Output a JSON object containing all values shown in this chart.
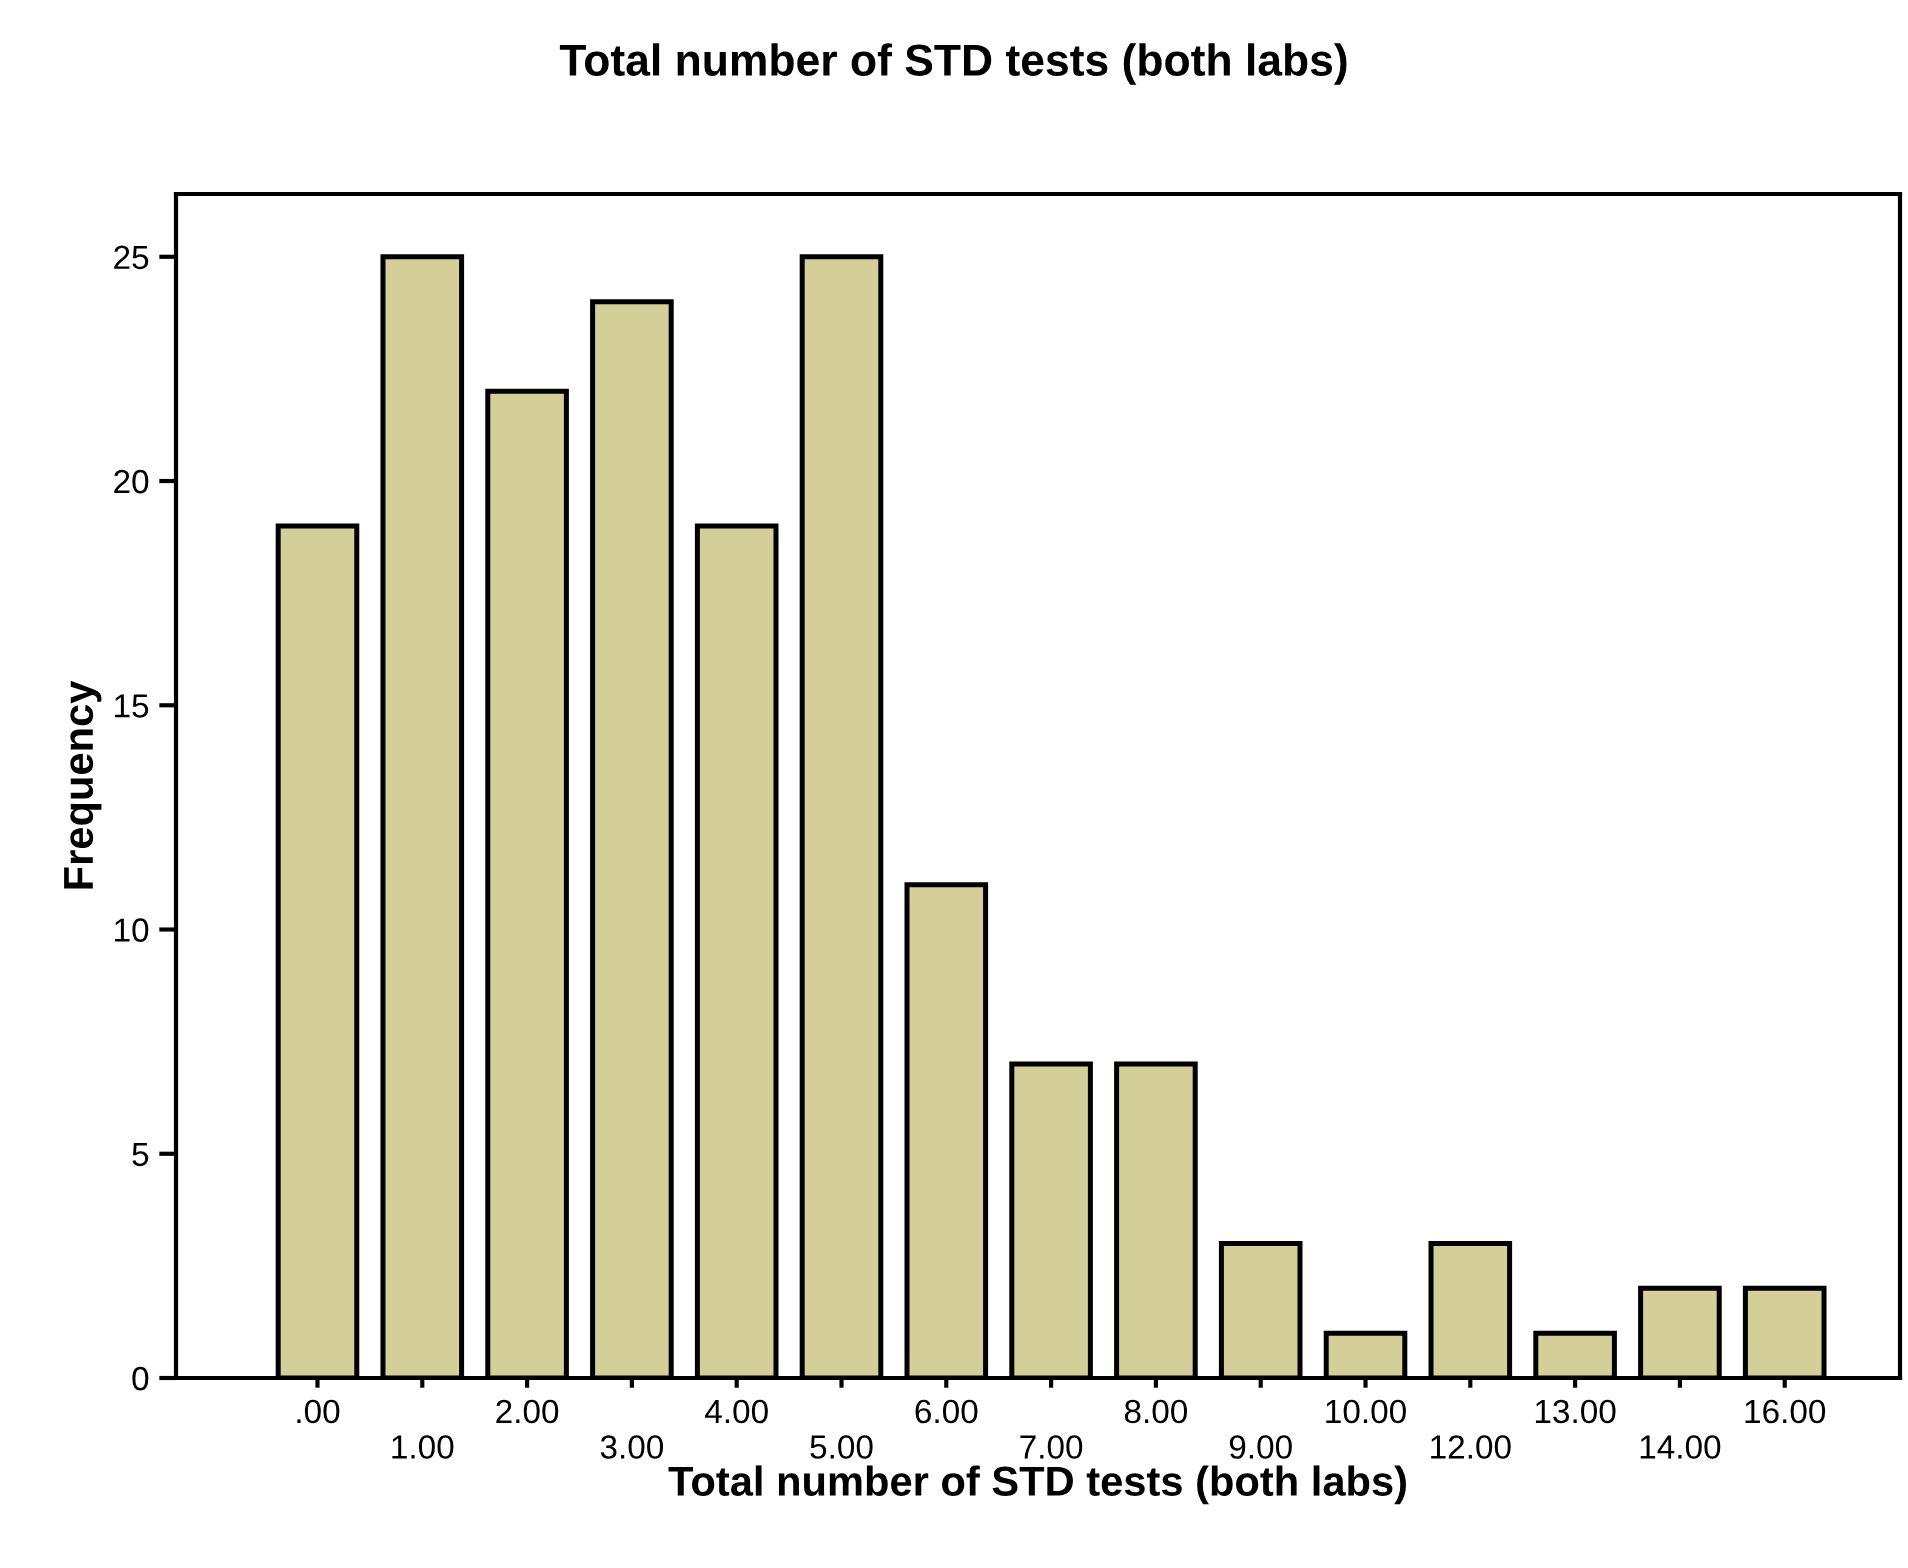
{
  "chart_data": {
    "type": "bar",
    "title": "Total number of STD tests (both labs)",
    "xlabel": "Total number of STD tests (both labs)",
    "ylabel": "Frequency",
    "categories": [
      ".00",
      "1.00",
      "2.00",
      "3.00",
      "4.00",
      "5.00",
      "6.00",
      "7.00",
      "8.00",
      "9.00",
      "10.00",
      "12.00",
      "13.00",
      "14.00",
      "16.00"
    ],
    "values": [
      19,
      25,
      22,
      24,
      19,
      25,
      11,
      7,
      7,
      3,
      1,
      3,
      1,
      2,
      2
    ],
    "color": "#d4cf98",
    "ylim": [
      0,
      26.4
    ],
    "yticks": [
      0,
      5,
      10,
      15,
      20,
      25
    ],
    "grid": false,
    "legend": false
  }
}
